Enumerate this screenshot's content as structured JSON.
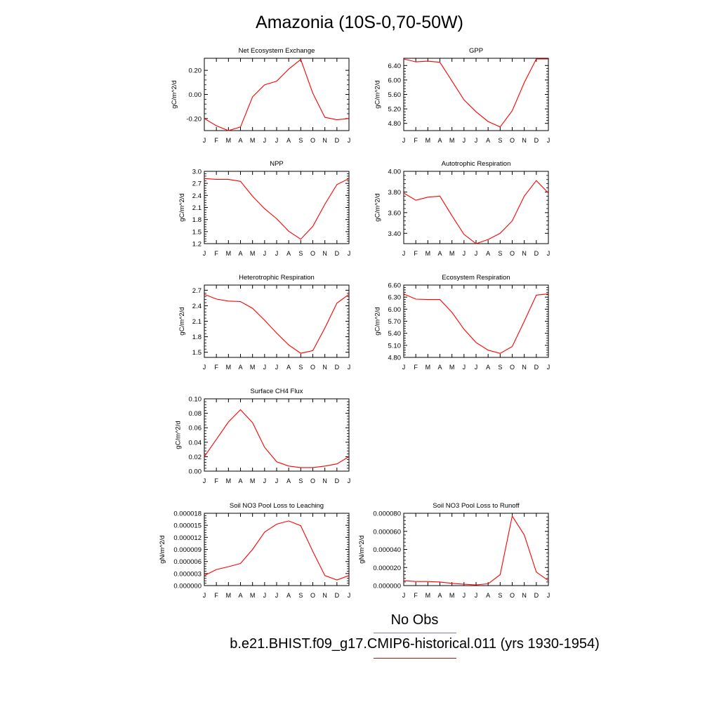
{
  "title": "Amazonia (10S-0,70-50W)",
  "legend": {
    "obs_label": "No Obs",
    "obs_color": "#7777ff",
    "model_label": "b.e21.BHIST.f09_g17.CMIP6-historical.011 (yrs 1930-1954)",
    "model_color": "#ff0000"
  },
  "chart_data": [
    {
      "type": "line",
      "title": "Net Ecosystem Exchange",
      "ylabel": "gC/m^2/d",
      "x": [
        "J",
        "F",
        "M",
        "A",
        "M",
        "J",
        "J",
        "A",
        "S",
        "O",
        "N",
        "D",
        "J"
      ],
      "ylim": [
        -0.3,
        0.3
      ],
      "yticks": [
        -0.2,
        0.0,
        0.2
      ],
      "yticklabels": [
        "-0.20",
        "0.00",
        "0.20"
      ],
      "series": [
        {
          "values": [
            -0.2,
            -0.26,
            -0.3,
            -0.27,
            -0.02,
            0.08,
            0.11,
            0.21,
            0.29,
            0.01,
            -0.19,
            -0.21,
            -0.2
          ]
        }
      ]
    },
    {
      "type": "line",
      "title": "GPP",
      "ylabel": "gC/m^2/d",
      "x": [
        "J",
        "F",
        "M",
        "A",
        "M",
        "J",
        "J",
        "A",
        "S",
        "O",
        "N",
        "D",
        "J"
      ],
      "ylim": [
        4.6,
        6.6
      ],
      "yticks": [
        4.8,
        5.2,
        5.6,
        6.0,
        6.4
      ],
      "yticklabels": [
        "4.80",
        "5.20",
        "5.60",
        "6.00",
        "6.40"
      ],
      "series": [
        {
          "values": [
            6.58,
            6.5,
            6.52,
            6.49,
            5.97,
            5.45,
            5.12,
            4.85,
            4.7,
            5.15,
            5.93,
            6.58,
            6.58
          ]
        }
      ]
    },
    {
      "type": "line",
      "title": "NPP",
      "ylabel": "gC/m^2/d",
      "x": [
        "J",
        "F",
        "M",
        "A",
        "M",
        "J",
        "J",
        "A",
        "S",
        "O",
        "N",
        "D",
        "J"
      ],
      "ylim": [
        1.2,
        3.0
      ],
      "yticks": [
        1.2,
        1.5,
        1.8,
        2.1,
        2.4,
        2.7,
        3.0
      ],
      "yticklabels": [
        "1.2",
        "1.5",
        "1.8",
        "2.1",
        "2.4",
        "2.7",
        "3.0"
      ],
      "series": [
        {
          "values": [
            2.82,
            2.8,
            2.8,
            2.75,
            2.38,
            2.07,
            1.82,
            1.51,
            1.31,
            1.63,
            2.18,
            2.67,
            2.82
          ]
        }
      ]
    },
    {
      "type": "line",
      "title": "Autotrophic Respiration",
      "ylabel": "gC/m^2/d",
      "x": [
        "J",
        "F",
        "M",
        "A",
        "M",
        "J",
        "J",
        "A",
        "S",
        "O",
        "N",
        "D",
        "J"
      ],
      "ylim": [
        3.3,
        4.0
      ],
      "yticks": [
        3.4,
        3.6,
        3.8,
        4.0
      ],
      "yticklabels": [
        "3.40",
        "3.60",
        "3.80",
        "4.00"
      ],
      "series": [
        {
          "values": [
            3.79,
            3.72,
            3.75,
            3.76,
            3.57,
            3.39,
            3.3,
            3.34,
            3.4,
            3.52,
            3.76,
            3.91,
            3.79
          ]
        }
      ]
    },
    {
      "type": "line",
      "title": "Heterotrophic Respiration",
      "ylabel": "gC/m^2/d",
      "x": [
        "J",
        "F",
        "M",
        "A",
        "M",
        "J",
        "J",
        "A",
        "S",
        "O",
        "N",
        "D",
        "J"
      ],
      "ylim": [
        1.4,
        2.8
      ],
      "yticks": [
        1.5,
        1.8,
        2.1,
        2.4,
        2.7
      ],
      "yticklabels": [
        "1.5",
        "1.8",
        "2.1",
        "2.4",
        "2.7"
      ],
      "series": [
        {
          "values": [
            2.62,
            2.53,
            2.49,
            2.48,
            2.35,
            2.12,
            1.87,
            1.64,
            1.48,
            1.53,
            1.97,
            2.45,
            2.62
          ]
        }
      ]
    },
    {
      "type": "line",
      "title": "Ecosystem Respiration",
      "ylabel": "gC/m^2/d",
      "x": [
        "J",
        "F",
        "M",
        "A",
        "M",
        "J",
        "J",
        "A",
        "S",
        "O",
        "N",
        "D",
        "J"
      ],
      "ylim": [
        4.8,
        6.6
      ],
      "yticks": [
        4.8,
        5.1,
        5.4,
        5.7,
        6.0,
        6.3,
        6.6
      ],
      "yticklabels": [
        "4.80",
        "5.10",
        "5.40",
        "5.70",
        "6.00",
        "6.30",
        "6.60"
      ],
      "series": [
        {
          "values": [
            6.38,
            6.25,
            6.24,
            6.24,
            5.92,
            5.5,
            5.17,
            4.98,
            4.9,
            5.07,
            5.7,
            6.35,
            6.38
          ]
        }
      ]
    },
    {
      "type": "line",
      "title": "Surface CH4 Flux",
      "ylabel": "gC/m^2/d",
      "x": [
        "J",
        "F",
        "M",
        "A",
        "M",
        "J",
        "J",
        "A",
        "S",
        "O",
        "N",
        "D",
        "J"
      ],
      "ylim": [
        0.0,
        0.1
      ],
      "yticks": [
        0.0,
        0.02,
        0.04,
        0.06,
        0.08,
        0.1
      ],
      "yticklabels": [
        "0.00",
        "0.02",
        "0.04",
        "0.06",
        "0.08",
        "0.10"
      ],
      "series": [
        {
          "values": [
            0.02,
            0.044,
            0.068,
            0.085,
            0.067,
            0.033,
            0.013,
            0.007,
            0.005,
            0.005,
            0.007,
            0.01,
            0.02
          ]
        }
      ]
    },
    {
      "type": "line",
      "title": "Soil NO3 Pool Loss to Leaching",
      "ylabel": "gN/m^2/d",
      "x": [
        "J",
        "F",
        "M",
        "A",
        "M",
        "J",
        "J",
        "A",
        "S",
        "O",
        "N",
        "D",
        "J"
      ],
      "ylim": [
        0.0,
        1.8e-05
      ],
      "yticks": [
        0.0,
        3e-06,
        6e-06,
        9e-06,
        1.2e-05,
        1.5e-05,
        1.8e-05
      ],
      "yticklabels": [
        "0.000000",
        "0.000003",
        "0.000006",
        "0.000009",
        "0.000012",
        "0.000015",
        "0.000018"
      ],
      "series": [
        {
          "values": [
            2.5e-06,
            4e-06,
            4.7e-06,
            5.5e-06,
            9e-06,
            1.33e-05,
            1.53e-05,
            1.61e-05,
            1.49e-05,
            8.5e-06,
            2.5e-06,
            1.4e-06,
            2.5e-06
          ]
        }
      ]
    },
    {
      "type": "line",
      "title": "Soil NO3 Pool Loss to Runoff",
      "ylabel": "gN/m^2/d",
      "x": [
        "J",
        "F",
        "M",
        "A",
        "M",
        "J",
        "J",
        "A",
        "S",
        "O",
        "N",
        "D",
        "J"
      ],
      "ylim": [
        0.0,
        8e-05
      ],
      "yticks": [
        0.0,
        2e-05,
        4e-05,
        6e-05,
        8e-05
      ],
      "yticklabels": [
        "0.000000",
        "0.000020",
        "0.000040",
        "0.000060",
        "0.000080"
      ],
      "series": [
        {
          "values": [
            5.5e-06,
            4.5e-06,
            4.5e-06,
            4e-06,
            2.5e-06,
            1.5e-06,
            8e-07,
            2e-06,
            1.2e-05,
            7.7e-05,
            5.6e-05,
            1.5e-05,
            5.5e-06
          ]
        }
      ]
    }
  ]
}
